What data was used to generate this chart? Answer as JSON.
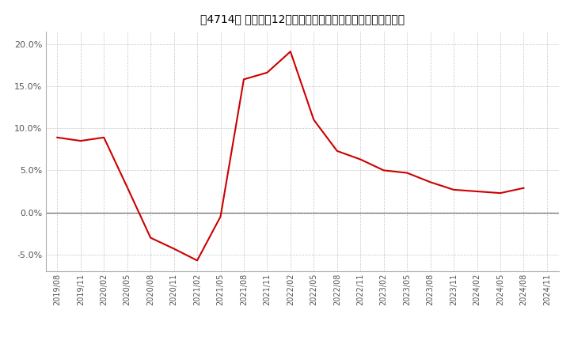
{
  "title": "［4714］ 売上高の12か月移動合計の対前年同期増減率の推移",
  "line_color": "#cc0000",
  "background_color": "#ffffff",
  "plot_bg_color": "#ffffff",
  "grid_color": "#aaaaaa",
  "ylim": [
    -0.07,
    0.215
  ],
  "yticks": [
    -0.05,
    0.0,
    0.05,
    0.1,
    0.15,
    0.2
  ],
  "dates": [
    "2019/08",
    "2019/11",
    "2020/02",
    "2020/05",
    "2020/08",
    "2020/11",
    "2021/02",
    "2021/05",
    "2021/08",
    "2021/11",
    "2022/02",
    "2022/05",
    "2022/08",
    "2022/11",
    "2023/02",
    "2023/05",
    "2023/08",
    "2023/11",
    "2024/02",
    "2024/05",
    "2024/08",
    "2024/11"
  ],
  "values": [
    0.089,
    0.085,
    0.089,
    0.03,
    -0.03,
    -0.043,
    -0.057,
    -0.005,
    0.158,
    0.166,
    0.191,
    0.11,
    0.073,
    0.063,
    0.05,
    0.047,
    0.036,
    0.027,
    0.025,
    0.023,
    0.029,
    null
  ],
  "zero_line_color": "#555555",
  "spine_color": "#aaaaaa",
  "tick_color": "#555555",
  "title_fontsize": 10,
  "tick_fontsize": 7,
  "linewidth": 1.5
}
